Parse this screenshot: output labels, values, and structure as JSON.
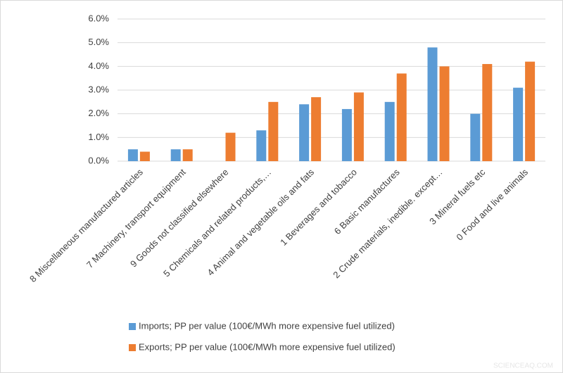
{
  "chart_data": {
    "type": "bar",
    "categories": [
      "8 Miscellaneous manufactured articles",
      "7 Machinery, transport equipment",
      "9 Goods not classified elsewhere",
      "5 Chemicals and related products,…",
      "4 Animal and vegetable oils and fats",
      "1 Beverages and tobacco",
      "6 Basic manufactures",
      "2 Crude materials, inedible. except…",
      "3 Mineral fuels etc",
      "0 Food and live animals"
    ],
    "series": [
      {
        "name": "Imports; PP per value (100€/MWh more expensive fuel utilized)",
        "color": "#5b9bd5",
        "values": [
          0.5,
          0.5,
          0,
          1.3,
          2.4,
          2.2,
          2.5,
          4.8,
          2.0,
          3.1
        ]
      },
      {
        "name": "Exports; PP per value (100€/MWh more expensive fuel utilized)",
        "color": "#ed7d31",
        "values": [
          0.4,
          0.5,
          1.2,
          2.5,
          2.7,
          2.9,
          3.7,
          4.0,
          4.1,
          4.2
        ]
      }
    ],
    "ylim": [
      0,
      6
    ],
    "yticks": [
      {
        "value": 0,
        "label": "0.0%"
      },
      {
        "value": 1,
        "label": "1.0%"
      },
      {
        "value": 2,
        "label": "2.0%"
      },
      {
        "value": 3,
        "label": "3.0%"
      },
      {
        "value": 4,
        "label": "4.0%"
      },
      {
        "value": 5,
        "label": "5.0%"
      },
      {
        "value": 6,
        "label": "6.0%"
      }
    ],
    "grid": true,
    "legend": "bottom",
    "watermark": "SCIENCEAQ.COM"
  }
}
